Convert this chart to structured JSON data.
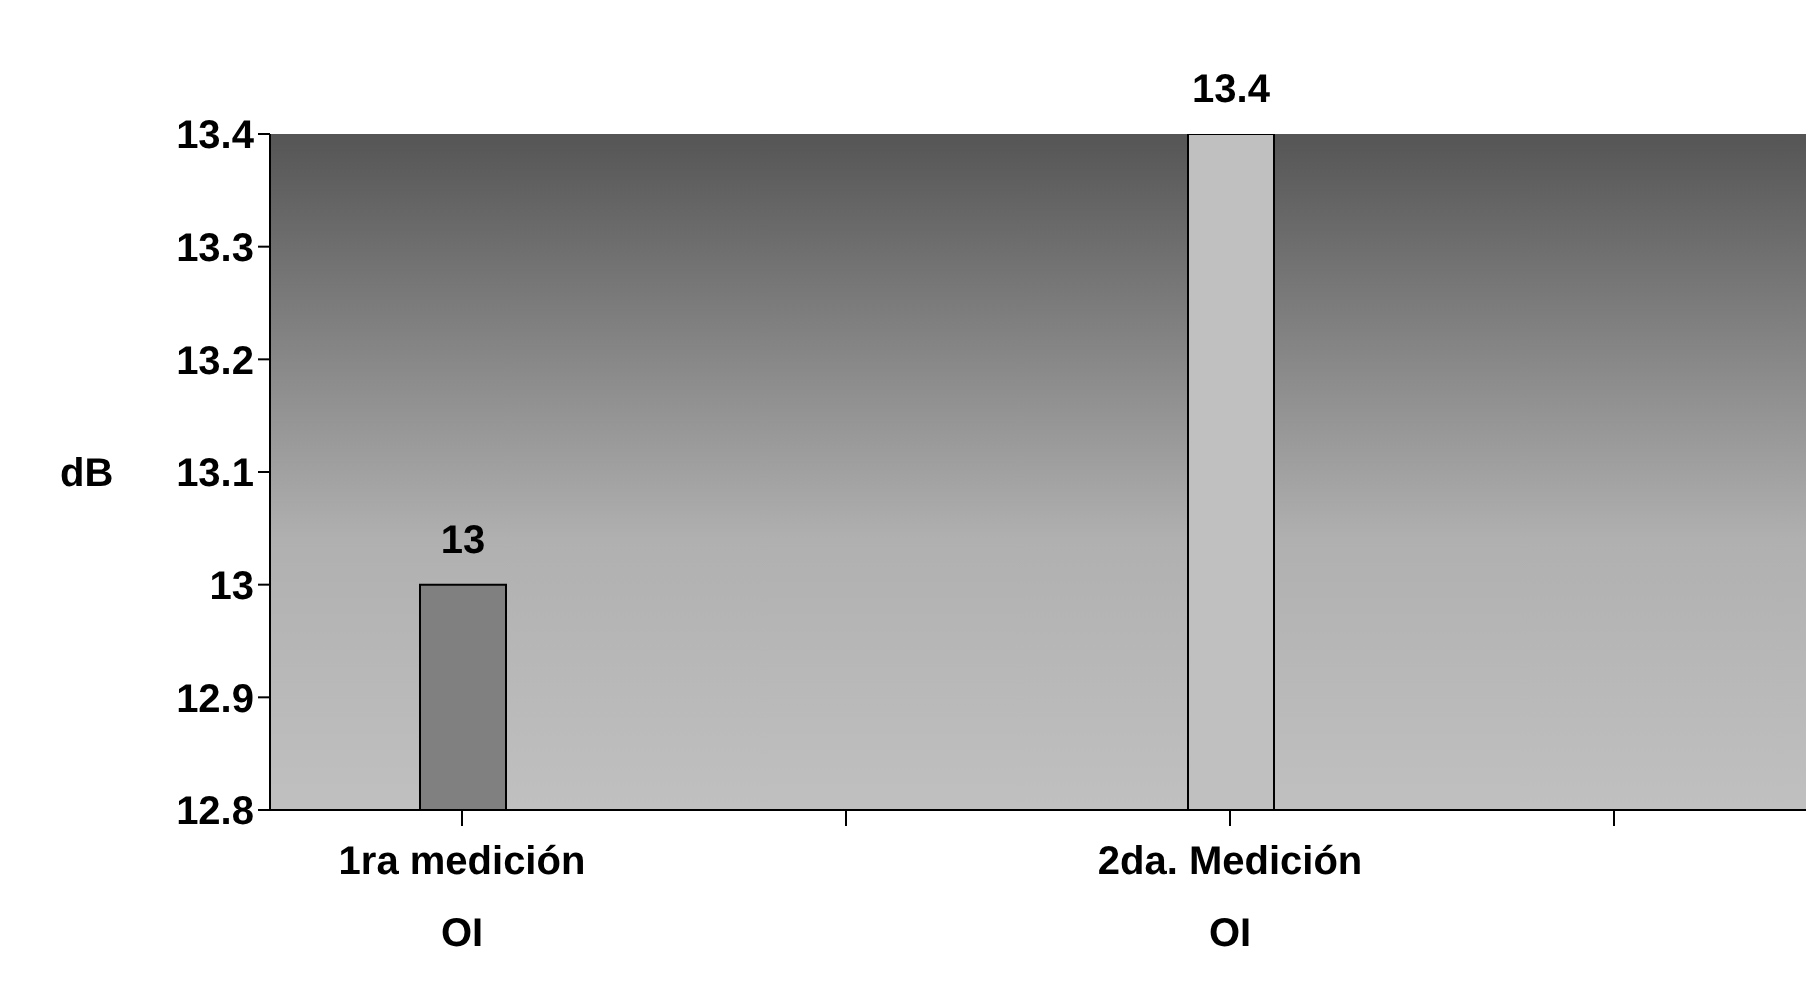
{
  "chart_data": {
    "type": "bar",
    "ylabel": "dB",
    "categories": [
      "1ra medición OI",
      null,
      "2da. Medición OI",
      null
    ],
    "values": [
      13,
      null,
      13.4,
      null
    ],
    "colors": [
      "#808080",
      null,
      "#c0c0c0",
      null
    ],
    "ylim": [
      12.8,
      13.4
    ],
    "yticks": [
      12.8,
      12.9,
      13,
      13.1,
      13.2,
      13.3,
      13.4
    ],
    "data_labels": true
  }
}
